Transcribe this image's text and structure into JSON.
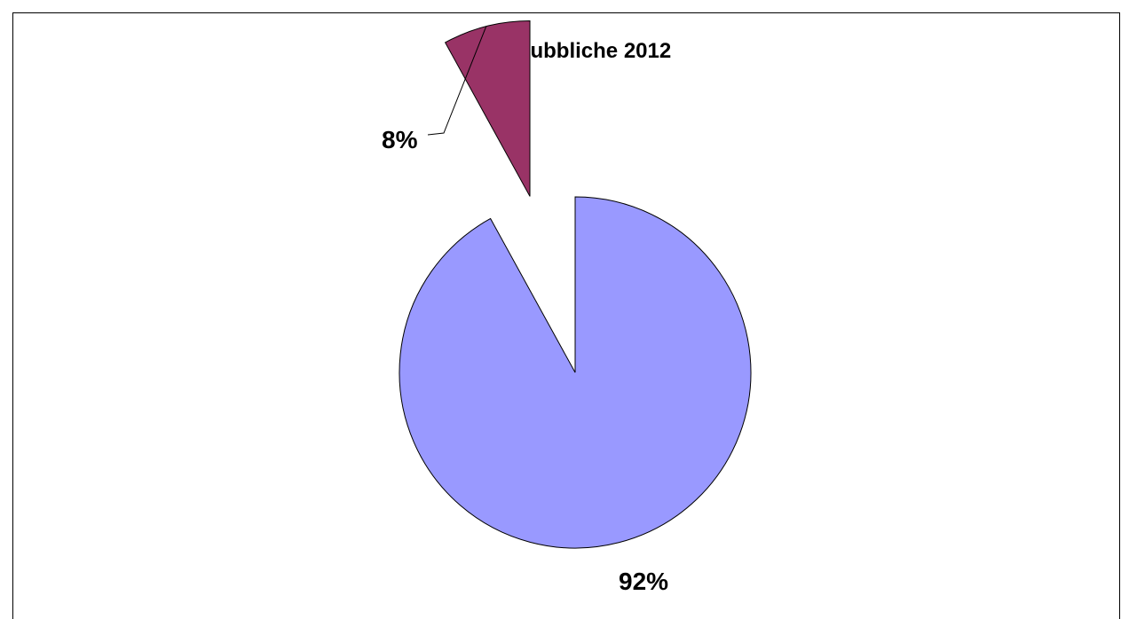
{
  "chart_data": {
    "type": "pie",
    "title": "Opere pubbliche 2012",
    "values": [
      92,
      8
    ],
    "labels": [
      "92%",
      "8%"
    ],
    "colors": [
      "#9999ff",
      "#993366"
    ],
    "exploded": [
      false,
      true
    ],
    "legend": "none"
  }
}
